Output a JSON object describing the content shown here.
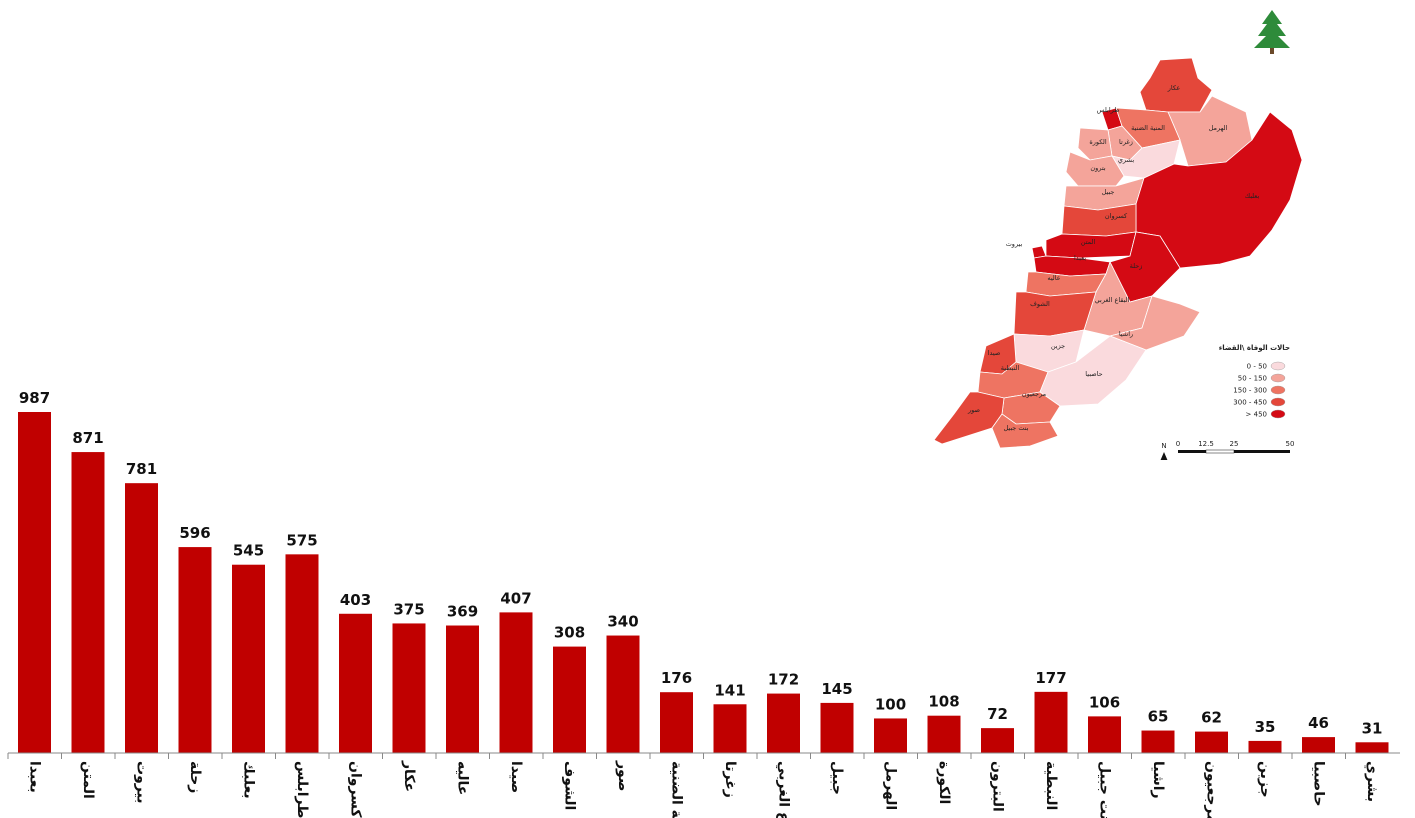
{
  "chart_data": {
    "type": "bar",
    "categories": [
      "بعبدا",
      "المتن",
      "بيروت",
      "زحلة",
      "بعلبك",
      "طرابلس",
      "كسروان",
      "عكار",
      "عاليه",
      "صيدا",
      "الشوف",
      "صور",
      "المنية الضنية",
      "زغرتا",
      "البقاع الغربي",
      "جبيل",
      "الهرمل",
      "الكورة",
      "البترون",
      "النبطية",
      "بنت جبيل",
      "راشيا",
      "مرجعيون",
      "جزين",
      "حاصبيا",
      "بشري"
    ],
    "values": [
      987,
      871,
      781,
      596,
      545,
      575,
      403,
      375,
      369,
      407,
      308,
      340,
      176,
      141,
      172,
      145,
      100,
      108,
      72,
      177,
      106,
      65,
      62,
      35,
      46,
      31
    ],
    "ylim": [
      0,
      1000
    ],
    "bar_color": "#c00000",
    "grid": false,
    "title": "",
    "xlabel": "",
    "ylabel": ""
  },
  "map": {
    "legend_title": "حالات الوفاة \\القضاء",
    "legend": [
      {
        "label": "0 - 50",
        "color": "#fadadd"
      },
      {
        "label": "50 - 150",
        "color": "#f4a49a"
      },
      {
        "label": "150 - 300",
        "color": "#ee7462"
      },
      {
        "label": "300 - 450",
        "color": "#e4473a"
      },
      {
        "label": "> 450",
        "color": "#d40a14"
      }
    ],
    "district_labels": [
      "عكار",
      "طرابلس",
      "المنية الضنية",
      "الهرمل",
      "زغرتا",
      "الكورة",
      "بشري",
      "بترون",
      "جبيل",
      "بعلبك",
      "كسروان",
      "بيروت",
      "المتن",
      "بعبدا",
      "زحلة",
      "عاليه",
      "البقاع الغربي",
      "الشوف",
      "راشيا",
      "جزين",
      "صيدا",
      "النبطية",
      "حاصبيا",
      "مرجعيون",
      "صور",
      "بنت جبيل"
    ],
    "north_label": "N",
    "scale_labels": [
      "0",
      "12.5",
      "25",
      "",
      "50"
    ],
    "emblem_icon": "cedar-tree-icon"
  }
}
